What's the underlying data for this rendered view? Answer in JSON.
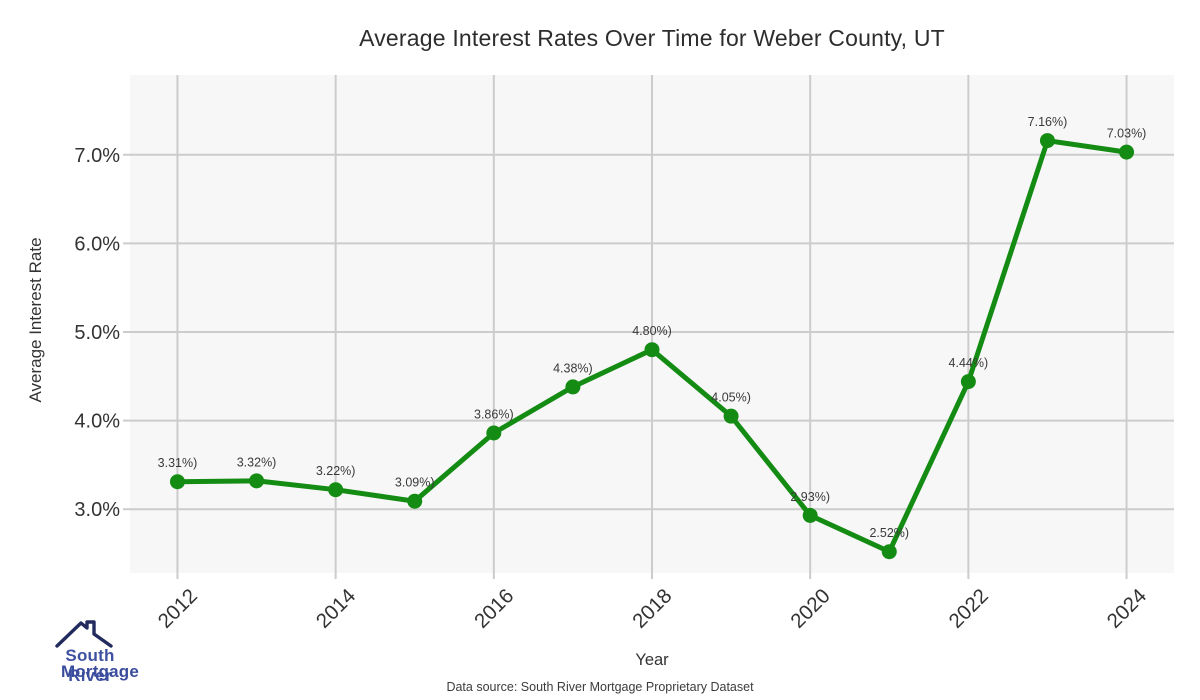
{
  "header": {
    "title": "Average Interest Rates Over Time for Weber County, UT"
  },
  "footer": {
    "source_text": "Data source: South River Mortgage Proprietary Dataset"
  },
  "logo": {
    "line1": "South River",
    "line2": "Mortgage",
    "house_icon_color": "#222a5e",
    "text_color": "#3f51a1"
  },
  "colors": {
    "line": "#148c14",
    "marker": "#148c14",
    "plot_background": "#f7f7f7",
    "gridline": "#cccccc",
    "tick_text": "#333333",
    "label_text": "#3a3a3a"
  },
  "chart_data": {
    "type": "line",
    "title": "Average Interest Rates Over Time for Weber County, UT",
    "xlabel": "Year",
    "ylabel": "Average Interest Rate",
    "x": [
      2012,
      2013,
      2014,
      2015,
      2016,
      2017,
      2018,
      2019,
      2020,
      2021,
      2022,
      2023,
      2024
    ],
    "values": [
      3.31,
      3.32,
      3.22,
      3.09,
      3.86,
      4.38,
      4.8,
      4.05,
      2.93,
      2.52,
      4.44,
      7.16,
      7.03
    ],
    "point_labels": [
      "3.31%)",
      "3.32%)",
      "3.22%)",
      "3.09%)",
      "3.86%)",
      "4.38%)",
      "4.80%)",
      "4.05%)",
      "2.93%)",
      "2.52%)",
      "4.44%)",
      "7.16%)",
      "7.03%)"
    ],
    "xlim": [
      2011.4,
      2024.6
    ],
    "ylim": [
      2.28,
      7.9
    ],
    "x_ticks": {
      "values": [
        2012,
        2014,
        2016,
        2018,
        2020,
        2022,
        2024
      ],
      "labels": [
        "2012",
        "2014",
        "2016",
        "2018",
        "2020",
        "2022",
        "2024"
      ]
    },
    "y_ticks": {
      "values": [
        3,
        4,
        5,
        6,
        7
      ],
      "labels": [
        "3.0%",
        "4.0%",
        "5.0%",
        "6.0%",
        "7.0%"
      ]
    },
    "grid": true,
    "legend": "none"
  }
}
